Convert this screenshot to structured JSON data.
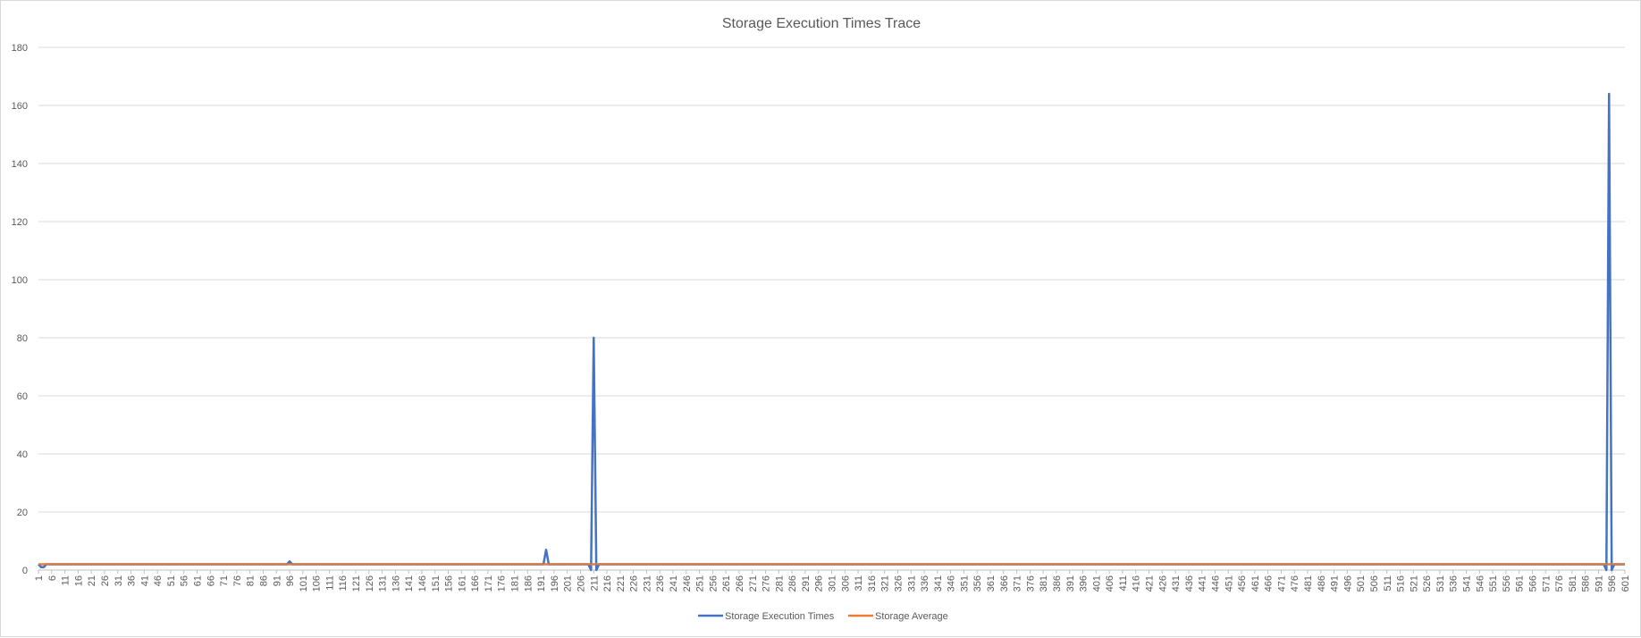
{
  "chart_data": {
    "type": "line",
    "title": "Storage Execution Times Trace",
    "xlabel": "",
    "ylabel": "",
    "x_range": [
      1,
      601
    ],
    "x_tick_step": 5,
    "ylim": [
      0,
      180
    ],
    "y_ticks": [
      0,
      20,
      40,
      60,
      80,
      100,
      120,
      140,
      160,
      180
    ],
    "grid": "horizontal",
    "legend_position": "bottom",
    "series": [
      {
        "name": "Storage Execution Times",
        "color": "#4472c4",
        "baseline": 2,
        "points": [
          {
            "x": 1,
            "y": 2
          },
          {
            "x": 2,
            "y": 1
          },
          {
            "x": 3,
            "y": 1
          },
          {
            "x": 4,
            "y": 2
          },
          {
            "x": 95,
            "y": 2
          },
          {
            "x": 96,
            "y": 3
          },
          {
            "x": 97,
            "y": 2
          },
          {
            "x": 192,
            "y": 2
          },
          {
            "x": 193,
            "y": 7
          },
          {
            "x": 194,
            "y": 2
          },
          {
            "x": 209,
            "y": 2
          },
          {
            "x": 210,
            "y": 0
          },
          {
            "x": 211,
            "y": 80
          },
          {
            "x": 212,
            "y": 0
          },
          {
            "x": 213,
            "y": 2
          },
          {
            "x": 593,
            "y": 2
          },
          {
            "x": 594,
            "y": 0
          },
          {
            "x": 595,
            "y": 164
          },
          {
            "x": 596,
            "y": 0
          },
          {
            "x": 597,
            "y": 2
          }
        ]
      },
      {
        "name": "Storage Average",
        "color": "#ed7d31",
        "value": 2
      }
    ]
  }
}
